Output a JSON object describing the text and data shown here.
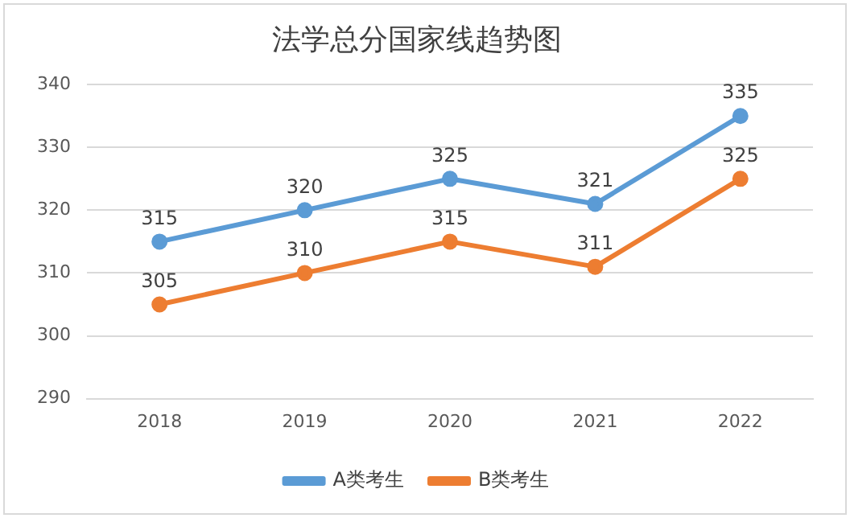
{
  "chart_data": {
    "type": "line",
    "title": "法学总分国家线趋势图",
    "categories": [
      "2018",
      "2019",
      "2020",
      "2021",
      "2022"
    ],
    "series": [
      {
        "name": "A类考生",
        "color": "#5b9bd5",
        "values": [
          315,
          320,
          325,
          321,
          335
        ]
      },
      {
        "name": "B类考生",
        "color": "#ed7d31",
        "values": [
          305,
          310,
          315,
          311,
          325
        ]
      }
    ],
    "ylim": [
      290,
      340
    ],
    "yticks": [
      290,
      300,
      310,
      320,
      330,
      340
    ],
    "grid": "y",
    "legend": "bottom",
    "marker": "circle",
    "line_style": "solid",
    "data_labels": true
  }
}
